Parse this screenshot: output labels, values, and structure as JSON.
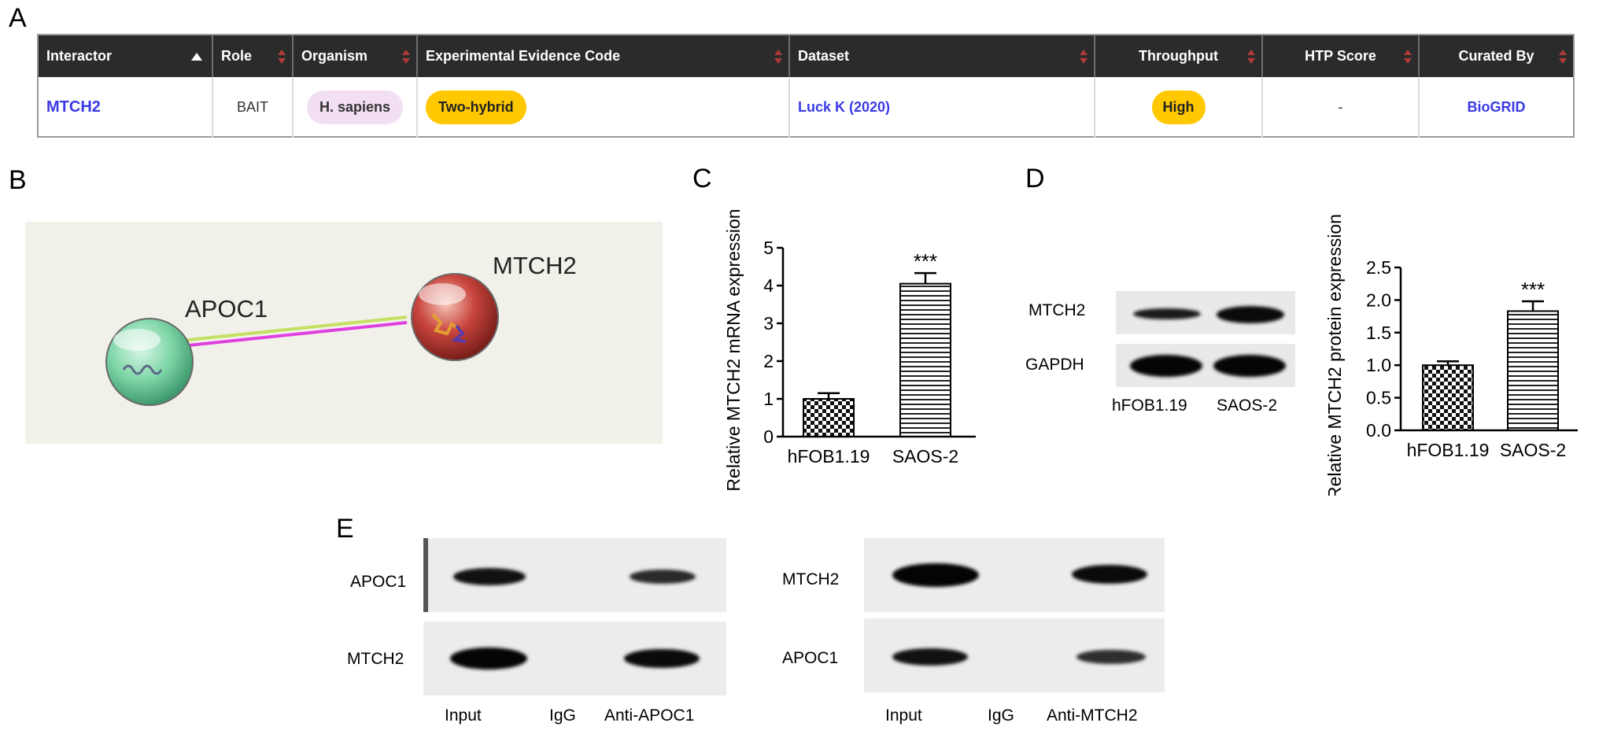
{
  "panels": {
    "a": "A",
    "b": "B",
    "c": "C",
    "d": "D",
    "e": "E"
  },
  "table": {
    "columns": [
      "Interactor",
      "Role",
      "Organism",
      "Experimental Evidence Code",
      "Dataset",
      "Throughput",
      "HTP Score",
      "Curated By"
    ],
    "row": {
      "interactor": "MTCH2",
      "role": "BAIT",
      "organism": "H. sapiens",
      "evidence": "Two-hybrid",
      "dataset": "Luck K (2020)",
      "throughput": "High",
      "htp_score": "-",
      "curated_by": "BioGRID"
    },
    "colors": {
      "header": "#2b2b2b",
      "link": "#3a3ae6",
      "organism_pill": "#f3dff3",
      "yellow_pill": "#ffc800"
    }
  },
  "network": {
    "nodes": [
      {
        "label": "APOC1",
        "color": "#7fd6a8"
      },
      {
        "label": "MTCH2",
        "color": "#c9463e"
      }
    ],
    "edge_colors": [
      "#c4e060",
      "#e040e0"
    ]
  },
  "chart_data": [
    {
      "type": "bar",
      "categories": [
        "hFOB1.19",
        "SAOS-2"
      ],
      "values": [
        1.0,
        4.05
      ],
      "errors": [
        0.15,
        0.28
      ],
      "ylabel": "Relative MTCH2 mRNA expression",
      "ylim": [
        0,
        5
      ],
      "yticks": [
        "0",
        "1",
        "2",
        "3",
        "4",
        "5"
      ],
      "significance": [
        "",
        "***"
      ]
    },
    {
      "type": "bar",
      "categories": [
        "hFOB1.19",
        "SAOS-2"
      ],
      "values": [
        1.0,
        1.83
      ],
      "errors": [
        0.06,
        0.15
      ],
      "ylabel": "Relative MTCH2 protein expression",
      "ylim": [
        0,
        2.5
      ],
      "yticks": [
        "0.0",
        "0.5",
        "1.0",
        "1.5",
        "2.0",
        "2.5"
      ],
      "significance": [
        "",
        "***"
      ]
    }
  ],
  "blot_d": {
    "rows": [
      "MTCH2",
      "GAPDH"
    ],
    "lanes": [
      "hFOB1.19",
      "SAOS-2"
    ]
  },
  "blot_e": [
    {
      "rows": [
        "APOC1",
        "MTCH2"
      ],
      "lanes": [
        "Input",
        "IgG",
        "Anti-APOC1"
      ]
    },
    {
      "rows": [
        "MTCH2",
        "APOC1"
      ],
      "lanes": [
        "Input",
        "IgG",
        "Anti-MTCH2"
      ]
    }
  ]
}
